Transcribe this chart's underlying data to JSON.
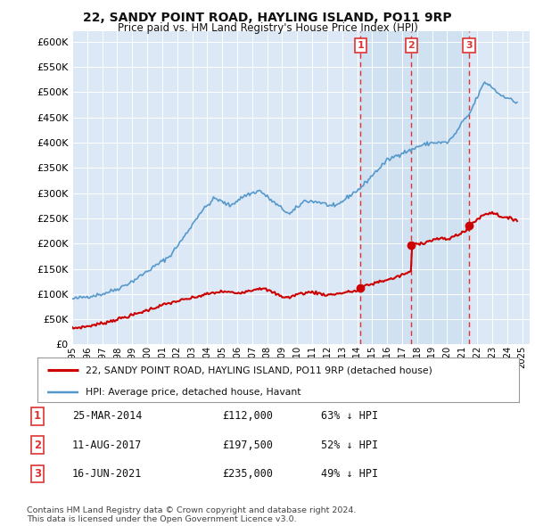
{
  "title": "22, SANDY POINT ROAD, HAYLING ISLAND, PO11 9RP",
  "subtitle": "Price paid vs. HM Land Registry's House Price Index (HPI)",
  "background_color": "#ffffff",
  "plot_bg_color": "#dce8f5",
  "plot_bg_color_pre": "#e8eff8",
  "grid_color": "#bbccdd",
  "ylim": [
    0,
    620000
  ],
  "xlim_start": 1995,
  "xlim_end": 2025.5,
  "yticks": [
    0,
    50000,
    100000,
    150000,
    200000,
    250000,
    300000,
    350000,
    400000,
    450000,
    500000,
    550000,
    600000
  ],
  "transactions": [
    {
      "date": "25-MAR-2014",
      "price": 112000,
      "label": "1",
      "pct": "63% ↓ HPI",
      "x_year": 2014.23
    },
    {
      "date": "11-AUG-2017",
      "price": 197500,
      "label": "2",
      "pct": "52% ↓ HPI",
      "x_year": 2017.62
    },
    {
      "date": "16-JUN-2021",
      "price": 235000,
      "label": "3",
      "pct": "49% ↓ HPI",
      "x_year": 2021.46
    }
  ],
  "legend_entries": [
    {
      "label": "22, SANDY POINT ROAD, HAYLING ISLAND, PO11 9RP (detached house)",
      "color": "#cc0000",
      "lw": 1.5
    },
    {
      "label": "HPI: Average price, detached house, Havant",
      "color": "#5599cc",
      "lw": 1.2
    }
  ],
  "footer": "Contains HM Land Registry data © Crown copyright and database right 2024.\nThis data is licensed under the Open Government Licence v3.0.",
  "shade_color": "#c8ddf0",
  "vline_color": "#dd3333",
  "vline_style": "--",
  "marker_color": "#cc0000"
}
